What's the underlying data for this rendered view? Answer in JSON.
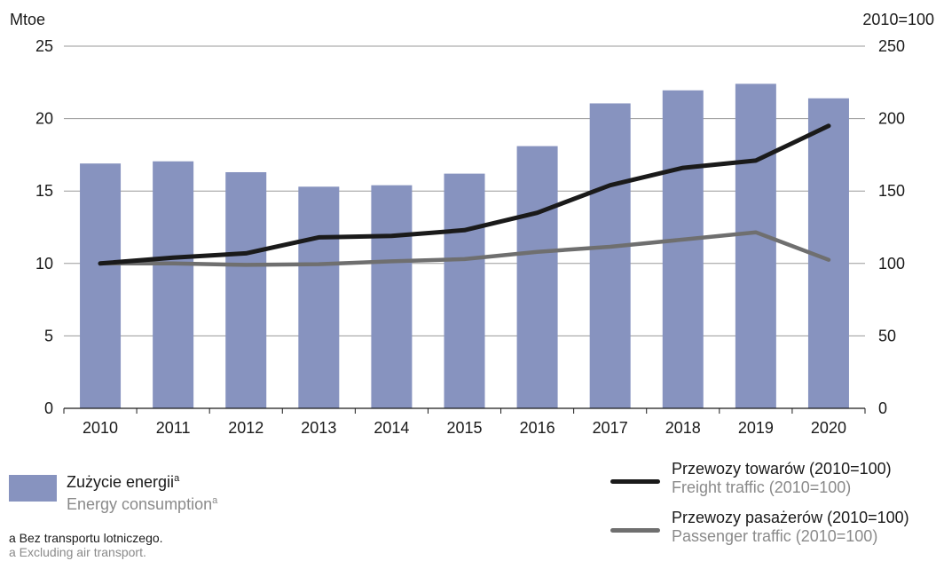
{
  "chart_data": {
    "type": "bar+line",
    "categories": [
      "2010",
      "2011",
      "2012",
      "2013",
      "2014",
      "2015",
      "2016",
      "2017",
      "2018",
      "2019",
      "2020"
    ],
    "left_axis": {
      "unit_label": "Mtoe",
      "range": [
        0,
        25
      ],
      "ticks": [
        "0",
        "5",
        "10",
        "15",
        "20",
        "25"
      ]
    },
    "right_axis": {
      "unit_label": "2010=100",
      "range": [
        0,
        250
      ],
      "ticks": [
        "0",
        "50",
        "100",
        "150",
        "200",
        "250"
      ]
    },
    "bars": {
      "name_pl": "Zużycie energii",
      "name_en": "Energy consumption",
      "footnote_mark": "a",
      "axis": "left",
      "color": "#8793bf",
      "values": [
        16.9,
        17.05,
        16.3,
        15.3,
        15.4,
        16.2,
        18.1,
        21.05,
        21.95,
        22.4,
        21.4
      ]
    },
    "series": [
      {
        "name_pl": "Przewozy towarów (2010=100)",
        "name_en": "Freight traffic (2010=100)",
        "axis": "right",
        "color": "#1a1a1a",
        "values": [
          100,
          104,
          107,
          118,
          119,
          123,
          135,
          154,
          166,
          171,
          195
        ]
      },
      {
        "name_pl": "Przewozy pasażerów (2010=100)",
        "name_en": "Passenger traffic (2010=100)",
        "axis": "right",
        "color": "#6f6f6f",
        "values": [
          100,
          100,
          99,
          99.5,
          101.5,
          103,
          108,
          111.5,
          116.5,
          121.5,
          102.5
        ]
      }
    ],
    "grid": "horizontal",
    "legend_placement": "bottom"
  },
  "footnote": {
    "pl": "a Bez transportu lotniczego.",
    "en": "a Excluding air transport."
  }
}
